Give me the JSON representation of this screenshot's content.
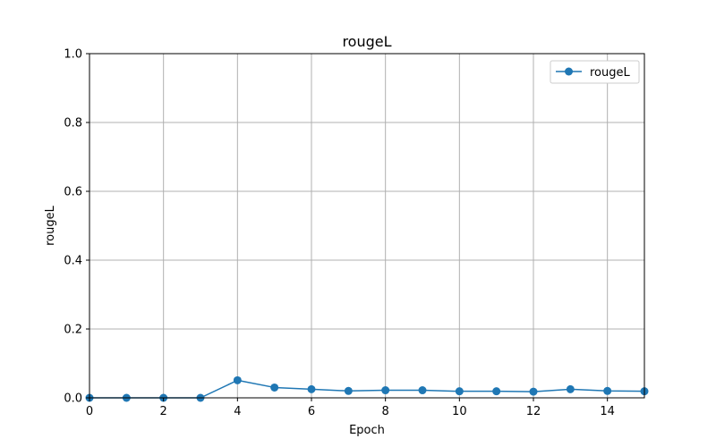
{
  "chart_data": {
    "type": "line",
    "title": "rougeL",
    "xlabel": "Epoch",
    "ylabel": "rougeL",
    "xlim": [
      0,
      15
    ],
    "ylim": [
      0,
      1.0
    ],
    "x_ticks": [
      "0",
      "2",
      "4",
      "6",
      "8",
      "10",
      "12",
      "14"
    ],
    "y_ticks": [
      "0.0",
      "0.2",
      "0.4",
      "0.6",
      "0.8",
      "1.0"
    ],
    "grid": true,
    "legend_position": "top-right",
    "colors": {
      "series": "#1f77b4",
      "grid": "#b0b0b0"
    },
    "x": [
      0,
      1,
      2,
      3,
      4,
      5,
      6,
      7,
      8,
      9,
      10,
      11,
      12,
      13,
      14,
      15
    ],
    "series": [
      {
        "name": "rougeL",
        "marker": "circle",
        "values": [
          0.0,
          0.0,
          0.0,
          0.0,
          0.051,
          0.03,
          0.025,
          0.02,
          0.022,
          0.022,
          0.019,
          0.019,
          0.018,
          0.025,
          0.02,
          0.019
        ]
      }
    ]
  }
}
